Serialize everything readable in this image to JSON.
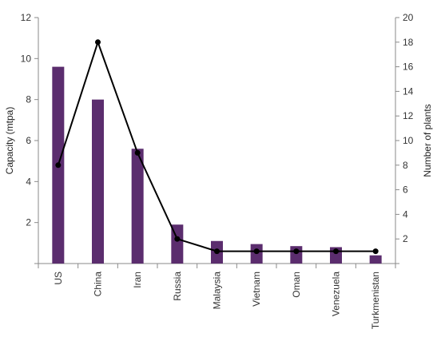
{
  "chart_data": {
    "type": "bar",
    "categories": [
      "US",
      "China",
      "Iran",
      "Russia",
      "Malaysia",
      "Vietnam",
      "Oman",
      "Venezuela",
      "Turkmenistan"
    ],
    "series": [
      {
        "name": "Capacity (mtpa)",
        "type": "bar",
        "axis": "left",
        "color": "#5b2d6e",
        "values": [
          9.6,
          8.0,
          5.6,
          1.9,
          1.1,
          0.95,
          0.85,
          0.8,
          0.4
        ]
      },
      {
        "name": "Number of plants",
        "type": "line",
        "axis": "right",
        "color": "#000000",
        "values": [
          8,
          18,
          9,
          2,
          1,
          1,
          1,
          1,
          1
        ]
      }
    ],
    "ylabel": "Capacity (mtpa)",
    "ylim": [
      0,
      12
    ],
    "yticks": [
      2,
      4,
      6,
      8,
      10,
      12
    ],
    "y2label": "Number of plants",
    "y2lim": [
      0,
      20
    ],
    "y2ticks": [
      2,
      4,
      6,
      8,
      10,
      12,
      14,
      16,
      18,
      20
    ],
    "grid": false,
    "legend": "none"
  }
}
